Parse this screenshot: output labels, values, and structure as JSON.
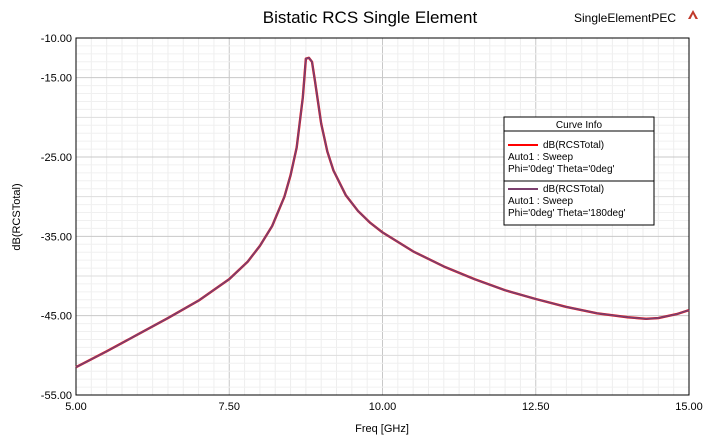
{
  "chart_data": {
    "type": "line",
    "title": "Bistatic RCS Single Element",
    "project_label": "SingleElementPEC",
    "xlabel": "Freq [GHz]",
    "ylabel": "dB(RCSTotal)",
    "xlim": [
      5.0,
      15.0
    ],
    "ylim": [
      -55.0,
      -10.0
    ],
    "x_ticks": [
      "5.00",
      "7.50",
      "10.00",
      "12.50",
      "15.00"
    ],
    "y_ticks": [
      "-10.00",
      "-15.00",
      "-25.00",
      "-35.00",
      "-45.00",
      "-55.00"
    ],
    "grid": true,
    "legend": {
      "title": "Curve Info",
      "placement": "right",
      "entries": [
        {
          "name": "dB(RCSTotal)",
          "line2": "Auto1 : Sweep",
          "line3": "Phi='0deg' Theta='0deg'",
          "color": "#ff0000"
        },
        {
          "name": "dB(RCSTotal)",
          "line2": "Auto1 : Sweep",
          "line3": "Phi='0deg' Theta='180deg'",
          "color": "#7b3f6e"
        }
      ]
    },
    "series": [
      {
        "name": "dB(RCSTotal)",
        "color": "#ff0000",
        "x": [
          5.0,
          5.5,
          6.0,
          6.5,
          7.0,
          7.5,
          7.8,
          8.0,
          8.2,
          8.4,
          8.5,
          8.6,
          8.7,
          8.75,
          8.8,
          8.85,
          8.9,
          9.0,
          9.1,
          9.2,
          9.4,
          9.6,
          9.8,
          10.0,
          10.5,
          11.0,
          11.5,
          12.0,
          12.5,
          13.0,
          13.5,
          14.0,
          14.3,
          14.5,
          14.8,
          15.0
        ],
        "y": [
          -51.5,
          -49.5,
          -47.4,
          -45.3,
          -43.1,
          -40.4,
          -38.2,
          -36.2,
          -33.7,
          -30.0,
          -27.3,
          -23.8,
          -17.5,
          -12.6,
          -12.5,
          -13.0,
          -15.5,
          -20.8,
          -24.3,
          -26.7,
          -29.8,
          -31.8,
          -33.3,
          -34.5,
          -36.9,
          -38.8,
          -40.4,
          -41.8,
          -42.9,
          -43.9,
          -44.7,
          -45.2,
          -45.4,
          -45.3,
          -44.8,
          -44.3
        ]
      },
      {
        "name": "dB(RCSTotal)",
        "color": "#7b3f6e",
        "x": [
          5.0,
          5.5,
          6.0,
          6.5,
          7.0,
          7.5,
          7.8,
          8.0,
          8.2,
          8.4,
          8.5,
          8.6,
          8.7,
          8.75,
          8.8,
          8.85,
          8.9,
          9.0,
          9.1,
          9.2,
          9.4,
          9.6,
          9.8,
          10.0,
          10.5,
          11.0,
          11.5,
          12.0,
          12.5,
          13.0,
          13.5,
          14.0,
          14.3,
          14.5,
          14.8,
          15.0
        ],
        "y": [
          -51.5,
          -49.5,
          -47.4,
          -45.3,
          -43.1,
          -40.4,
          -38.2,
          -36.2,
          -33.7,
          -30.0,
          -27.3,
          -23.8,
          -17.5,
          -12.6,
          -12.5,
          -13.0,
          -15.5,
          -20.8,
          -24.3,
          -26.7,
          -29.8,
          -31.8,
          -33.3,
          -34.5,
          -36.9,
          -38.8,
          -40.4,
          -41.8,
          -42.9,
          -43.9,
          -44.7,
          -45.2,
          -45.4,
          -45.3,
          -44.8,
          -44.3
        ]
      }
    ]
  }
}
